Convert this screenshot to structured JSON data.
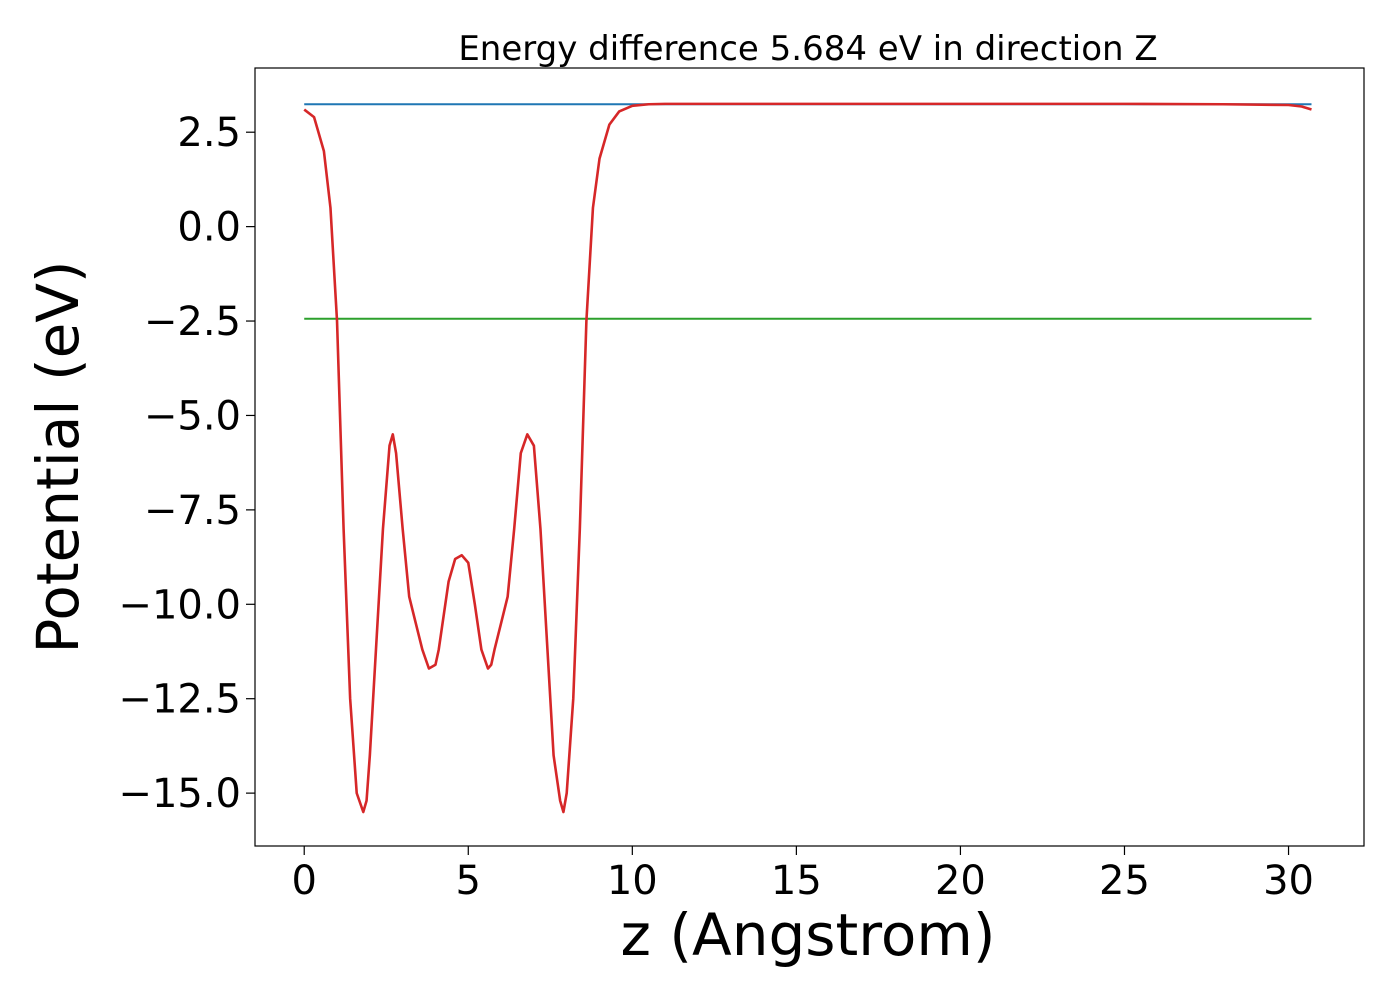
{
  "chart_data": {
    "type": "line",
    "title": "Energy difference 5.684 eV in direction Z",
    "xlabel": "z (Angstrom)",
    "ylabel": "Potential (eV)",
    "xlim": [
      -1.5,
      32.3
    ],
    "ylim": [
      -16.4,
      4.2
    ],
    "xticks": [
      0,
      5,
      10,
      15,
      20,
      25,
      30
    ],
    "yticks": [
      2.5,
      0.0,
      -2.5,
      -5.0,
      -7.5,
      -10.0,
      -12.5,
      -15.0
    ],
    "xtick_labels": [
      "0",
      "5",
      "10",
      "15",
      "20",
      "25",
      "30"
    ],
    "ytick_labels": [
      "2.5",
      "0.0",
      "−2.5",
      "−5.0",
      "−7.5",
      "−10.0",
      "−12.5",
      "−15.0"
    ],
    "grid": false,
    "series": [
      {
        "color": "#1f77b4",
        "kind": "hline",
        "x": [
          0,
          30.7
        ],
        "y": [
          3.24,
          3.24
        ]
      },
      {
        "color": "#2ca02c",
        "kind": "hline",
        "x": [
          0,
          30.7
        ],
        "y": [
          -2.44,
          -2.44
        ]
      },
      {
        "color": "#d62728",
        "kind": "line",
        "x": [
          0,
          0.3,
          0.6,
          0.8,
          1.0,
          1.2,
          1.4,
          1.6,
          1.8,
          1.9,
          2.0,
          2.2,
          2.4,
          2.6,
          2.7,
          2.8,
          3.0,
          3.2,
          3.4,
          3.6,
          3.8,
          4.0,
          4.1,
          4.2,
          4.4,
          4.6,
          4.8,
          5.0,
          5.2,
          5.4,
          5.6,
          5.7,
          5.8,
          6.0,
          6.2,
          6.4,
          6.6,
          6.8,
          7.0,
          7.2,
          7.4,
          7.6,
          7.8,
          7.9,
          8.0,
          8.2,
          8.4,
          8.6,
          8.8,
          9.0,
          9.3,
          9.6,
          10.0,
          10.5,
          11.0,
          12.0,
          15.0,
          20.0,
          25.0,
          28.0,
          30.0,
          30.4,
          30.7
        ],
        "y": [
          3.1,
          2.9,
          2.0,
          0.5,
          -2.5,
          -8.0,
          -12.5,
          -15.0,
          -15.5,
          -15.2,
          -14.0,
          -11.0,
          -8.0,
          -5.8,
          -5.5,
          -6.0,
          -8.0,
          -9.8,
          -10.5,
          -11.2,
          -11.7,
          -11.6,
          -11.2,
          -10.6,
          -9.4,
          -8.8,
          -8.7,
          -8.9,
          -10.0,
          -11.2,
          -11.7,
          -11.6,
          -11.2,
          -10.5,
          -9.8,
          -8.0,
          -6.0,
          -5.5,
          -5.8,
          -8.0,
          -11.0,
          -14.0,
          -15.2,
          -15.5,
          -15.0,
          -12.5,
          -8.0,
          -2.5,
          0.5,
          1.8,
          2.7,
          3.05,
          3.2,
          3.24,
          3.25,
          3.25,
          3.25,
          3.25,
          3.25,
          3.24,
          3.22,
          3.18,
          3.1
        ]
      }
    ]
  }
}
